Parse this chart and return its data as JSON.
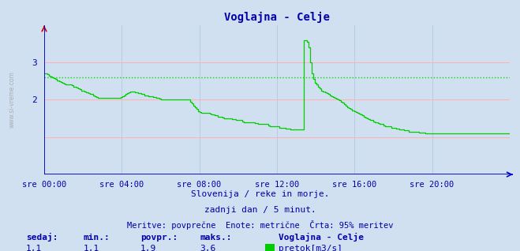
{
  "title": "Voglajna - Celje",
  "bg_color": "#d0e0f0",
  "plot_bg_color": "#d0e0f0",
  "line_color": "#00cc00",
  "grid_color_h": "#ffb0b0",
  "grid_color_v": "#b8cce4",
  "axis_color": "#0000cc",
  "text_color": "#0000aa",
  "avg_line_color": "#00dd00",
  "avg_value": 2.6,
  "ylim": [
    0.0,
    4.0
  ],
  "yticks": [
    2,
    3
  ],
  "xlabel_times": [
    "sre 00:00",
    "sre 04:00",
    "sre 08:00",
    "sre 12:00",
    "sre 16:00",
    "sre 20:00"
  ],
  "subtitle1": "Slovenija / reke in morje.",
  "subtitle2": "zadnji dan / 5 minut.",
  "subtitle3": "Meritve: povprečne  Enote: metrične  Črta: 95% meritev",
  "footer_labels": [
    "sedaj:",
    "min.:",
    "povpr.:",
    "maks.:"
  ],
  "footer_values": [
    "1,1",
    "1,1",
    "1,9",
    "3,6"
  ],
  "legend_label": "Voglajna - Celje",
  "legend_sublabel": "pretok[m3/s]",
  "num_points": 288,
  "data_y": [
    2.7,
    2.7,
    2.68,
    2.65,
    2.62,
    2.6,
    2.58,
    2.55,
    2.52,
    2.5,
    2.48,
    2.45,
    2.43,
    2.42,
    2.42,
    2.42,
    2.4,
    2.38,
    2.35,
    2.35,
    2.32,
    2.3,
    2.28,
    2.25,
    2.25,
    2.22,
    2.2,
    2.18,
    2.15,
    2.15,
    2.12,
    2.1,
    2.08,
    2.05,
    2.05,
    2.05,
    2.05,
    2.05,
    2.05,
    2.05,
    2.05,
    2.05,
    2.05,
    2.05,
    2.05,
    2.05,
    2.05,
    2.08,
    2.1,
    2.12,
    2.15,
    2.18,
    2.2,
    2.22,
    2.22,
    2.22,
    2.2,
    2.2,
    2.18,
    2.18,
    2.15,
    2.15,
    2.12,
    2.12,
    2.1,
    2.1,
    2.1,
    2.08,
    2.08,
    2.05,
    2.05,
    2.02,
    2.0,
    2.0,
    2.0,
    2.0,
    2.0,
    2.0,
    2.0,
    2.0,
    2.0,
    2.0,
    2.0,
    2.0,
    2.0,
    2.0,
    2.0,
    2.0,
    2.0,
    2.0,
    1.95,
    1.9,
    1.85,
    1.8,
    1.75,
    1.7,
    1.68,
    1.65,
    1.65,
    1.65,
    1.65,
    1.65,
    1.62,
    1.6,
    1.6,
    1.58,
    1.58,
    1.55,
    1.55,
    1.55,
    1.52,
    1.5,
    1.5,
    1.5,
    1.5,
    1.5,
    1.48,
    1.48,
    1.45,
    1.45,
    1.45,
    1.45,
    1.42,
    1.4,
    1.4,
    1.4,
    1.4,
    1.4,
    1.4,
    1.4,
    1.38,
    1.38,
    1.35,
    1.35,
    1.35,
    1.35,
    1.35,
    1.35,
    1.32,
    1.3,
    1.3,
    1.3,
    1.28,
    1.28,
    1.28,
    1.25,
    1.25,
    1.25,
    1.25,
    1.22,
    1.22,
    1.22,
    1.2,
    1.2,
    1.2,
    1.2,
    1.2,
    1.2,
    1.2,
    1.2,
    3.6,
    3.6,
    3.55,
    3.4,
    3.0,
    2.7,
    2.55,
    2.45,
    2.4,
    2.35,
    2.3,
    2.25,
    2.22,
    2.2,
    2.18,
    2.15,
    2.12,
    2.1,
    2.08,
    2.05,
    2.02,
    2.0,
    1.98,
    1.95,
    1.92,
    1.88,
    1.85,
    1.8,
    1.78,
    1.75,
    1.72,
    1.7,
    1.68,
    1.65,
    1.62,
    1.6,
    1.58,
    1.55,
    1.52,
    1.5,
    1.48,
    1.45,
    1.45,
    1.42,
    1.4,
    1.4,
    1.38,
    1.35,
    1.35,
    1.32,
    1.3,
    1.3,
    1.28,
    1.28,
    1.25,
    1.25,
    1.25,
    1.22,
    1.22,
    1.2,
    1.2,
    1.2,
    1.18,
    1.18,
    1.18,
    1.15,
    1.15,
    1.15,
    1.15,
    1.15,
    1.15,
    1.12,
    1.12,
    1.12,
    1.12,
    1.1,
    1.1,
    1.1,
    1.1,
    1.1,
    1.1,
    1.1,
    1.1,
    1.1,
    1.1,
    1.1,
    1.1,
    1.1,
    1.1,
    1.1,
    1.1,
    1.1,
    1.1,
    1.1,
    1.1,
    1.1,
    1.1,
    1.1,
    1.1,
    1.1,
    1.1,
    1.1,
    1.1,
    1.1,
    1.1,
    1.1,
    1.1,
    1.1,
    1.1,
    1.1,
    1.1,
    1.1,
    1.1,
    1.1,
    1.1,
    1.1,
    1.1,
    1.1,
    1.1,
    1.1,
    1.1,
    1.1,
    1.1,
    1.1,
    1.1,
    1.1,
    1.1,
    1.1
  ]
}
